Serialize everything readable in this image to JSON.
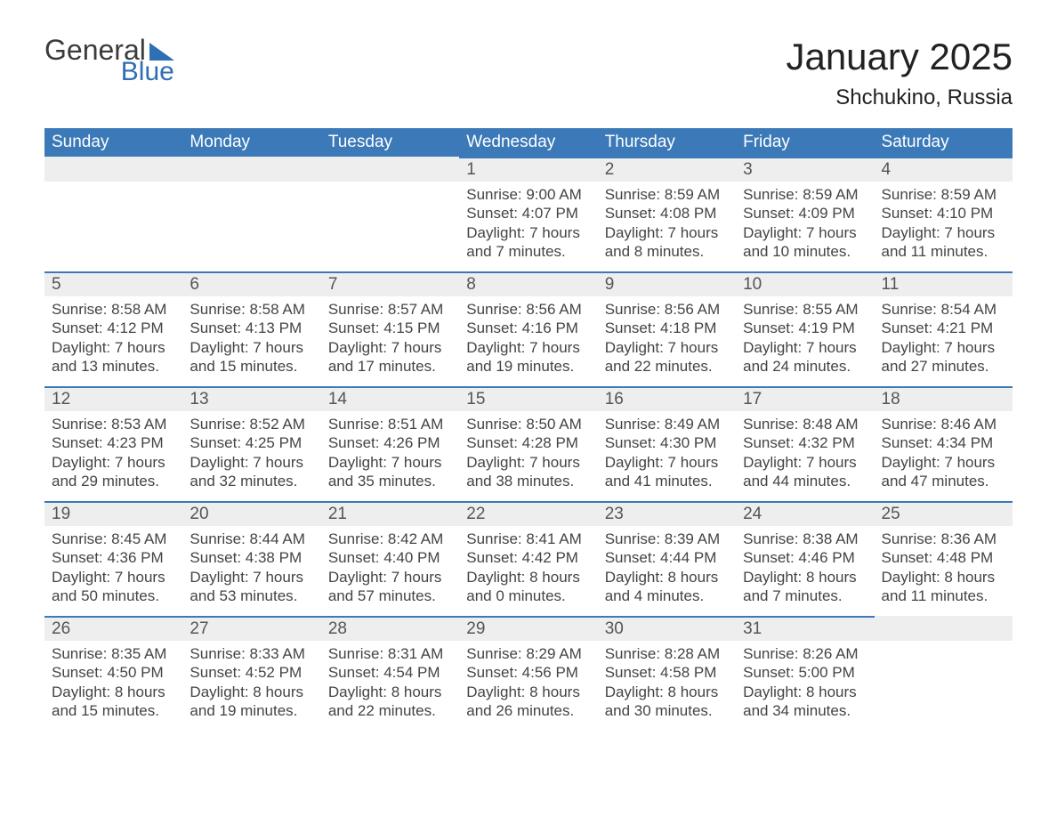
{
  "logo": {
    "general": "General",
    "blue": "Blue"
  },
  "title": "January 2025",
  "location": "Shchukino, Russia",
  "colors": {
    "brand_blue": "#2f6fb3",
    "header_bg": "#3b79b8",
    "daynum_bg": "#eeeeee",
    "text": "#333333"
  },
  "weekdays": [
    "Sunday",
    "Monday",
    "Tuesday",
    "Wednesday",
    "Thursday",
    "Friday",
    "Saturday"
  ],
  "weeks": [
    [
      null,
      null,
      null,
      {
        "n": "1",
        "sr": "9:00 AM",
        "ss": "4:07 PM",
        "dl": "7 hours and 7 minutes."
      },
      {
        "n": "2",
        "sr": "8:59 AM",
        "ss": "4:08 PM",
        "dl": "7 hours and 8 minutes."
      },
      {
        "n": "3",
        "sr": "8:59 AM",
        "ss": "4:09 PM",
        "dl": "7 hours and 10 minutes."
      },
      {
        "n": "4",
        "sr": "8:59 AM",
        "ss": "4:10 PM",
        "dl": "7 hours and 11 minutes."
      }
    ],
    [
      {
        "n": "5",
        "sr": "8:58 AM",
        "ss": "4:12 PM",
        "dl": "7 hours and 13 minutes."
      },
      {
        "n": "6",
        "sr": "8:58 AM",
        "ss": "4:13 PM",
        "dl": "7 hours and 15 minutes."
      },
      {
        "n": "7",
        "sr": "8:57 AM",
        "ss": "4:15 PM",
        "dl": "7 hours and 17 minutes."
      },
      {
        "n": "8",
        "sr": "8:56 AM",
        "ss": "4:16 PM",
        "dl": "7 hours and 19 minutes."
      },
      {
        "n": "9",
        "sr": "8:56 AM",
        "ss": "4:18 PM",
        "dl": "7 hours and 22 minutes."
      },
      {
        "n": "10",
        "sr": "8:55 AM",
        "ss": "4:19 PM",
        "dl": "7 hours and 24 minutes."
      },
      {
        "n": "11",
        "sr": "8:54 AM",
        "ss": "4:21 PM",
        "dl": "7 hours and 27 minutes."
      }
    ],
    [
      {
        "n": "12",
        "sr": "8:53 AM",
        "ss": "4:23 PM",
        "dl": "7 hours and 29 minutes."
      },
      {
        "n": "13",
        "sr": "8:52 AM",
        "ss": "4:25 PM",
        "dl": "7 hours and 32 minutes."
      },
      {
        "n": "14",
        "sr": "8:51 AM",
        "ss": "4:26 PM",
        "dl": "7 hours and 35 minutes."
      },
      {
        "n": "15",
        "sr": "8:50 AM",
        "ss": "4:28 PM",
        "dl": "7 hours and 38 minutes."
      },
      {
        "n": "16",
        "sr": "8:49 AM",
        "ss": "4:30 PM",
        "dl": "7 hours and 41 minutes."
      },
      {
        "n": "17",
        "sr": "8:48 AM",
        "ss": "4:32 PM",
        "dl": "7 hours and 44 minutes."
      },
      {
        "n": "18",
        "sr": "8:46 AM",
        "ss": "4:34 PM",
        "dl": "7 hours and 47 minutes."
      }
    ],
    [
      {
        "n": "19",
        "sr": "8:45 AM",
        "ss": "4:36 PM",
        "dl": "7 hours and 50 minutes."
      },
      {
        "n": "20",
        "sr": "8:44 AM",
        "ss": "4:38 PM",
        "dl": "7 hours and 53 minutes."
      },
      {
        "n": "21",
        "sr": "8:42 AM",
        "ss": "4:40 PM",
        "dl": "7 hours and 57 minutes."
      },
      {
        "n": "22",
        "sr": "8:41 AM",
        "ss": "4:42 PM",
        "dl": "8 hours and 0 minutes."
      },
      {
        "n": "23",
        "sr": "8:39 AM",
        "ss": "4:44 PM",
        "dl": "8 hours and 4 minutes."
      },
      {
        "n": "24",
        "sr": "8:38 AM",
        "ss": "4:46 PM",
        "dl": "8 hours and 7 minutes."
      },
      {
        "n": "25",
        "sr": "8:36 AM",
        "ss": "4:48 PM",
        "dl": "8 hours and 11 minutes."
      }
    ],
    [
      {
        "n": "26",
        "sr": "8:35 AM",
        "ss": "4:50 PM",
        "dl": "8 hours and 15 minutes."
      },
      {
        "n": "27",
        "sr": "8:33 AM",
        "ss": "4:52 PM",
        "dl": "8 hours and 19 minutes."
      },
      {
        "n": "28",
        "sr": "8:31 AM",
        "ss": "4:54 PM",
        "dl": "8 hours and 22 minutes."
      },
      {
        "n": "29",
        "sr": "8:29 AM",
        "ss": "4:56 PM",
        "dl": "8 hours and 26 minutes."
      },
      {
        "n": "30",
        "sr": "8:28 AM",
        "ss": "4:58 PM",
        "dl": "8 hours and 30 minutes."
      },
      {
        "n": "31",
        "sr": "8:26 AM",
        "ss": "5:00 PM",
        "dl": "8 hours and 34 minutes."
      },
      null
    ]
  ],
  "labels": {
    "sunrise": "Sunrise: ",
    "sunset": "Sunset: ",
    "daylight": "Daylight: "
  }
}
